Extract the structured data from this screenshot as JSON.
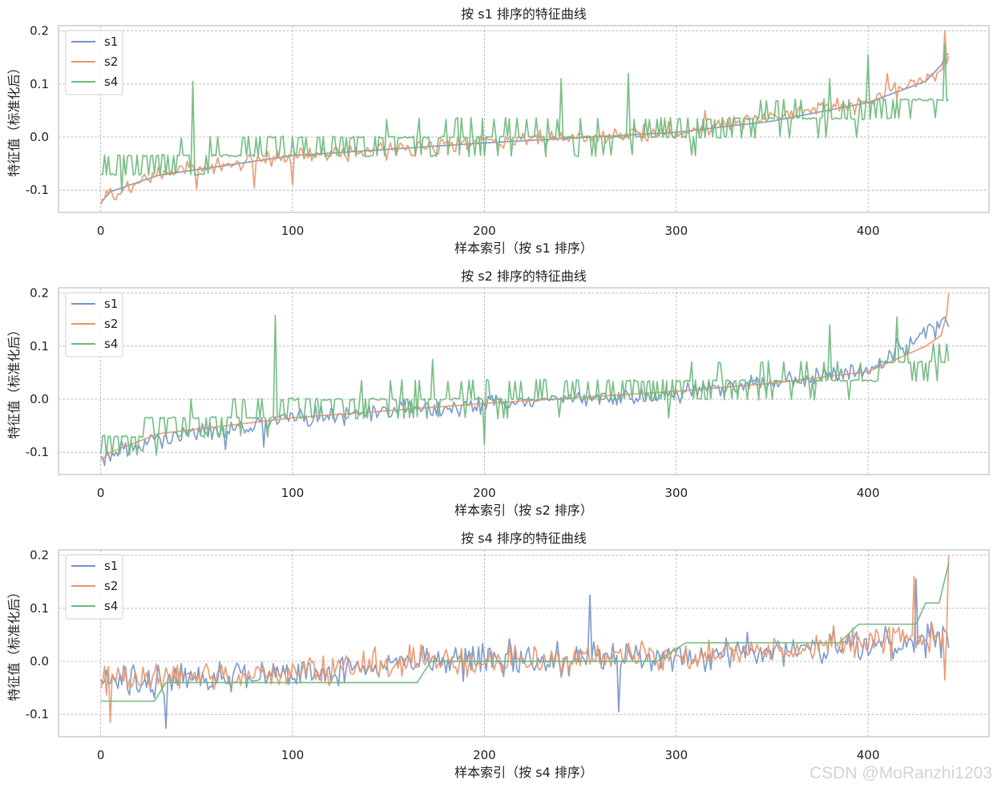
{
  "watermark": "CSDN @MoRanzhi1203",
  "colors": {
    "s1": "#7393c9",
    "s2": "#e8956a",
    "s4": "#6db87c",
    "grid": "#b0b0b0",
    "frame": "#cccccc"
  },
  "chart_data": [
    {
      "type": "line",
      "title": "按 s1 排序的特征曲线",
      "xlabel": "样本索引（按 s1 排序）",
      "ylabel": "特征值（标准化后）",
      "xlim": [
        -22,
        463
      ],
      "ylim": [
        -0.142,
        0.21
      ],
      "xticks": [
        0,
        100,
        200,
        300,
        400
      ],
      "xtick_labels": [
        "0",
        "100",
        "200",
        "300",
        "400"
      ],
      "yticks": [
        -0.1,
        0.0,
        0.1,
        0.2
      ],
      "ytick_labels": [
        "-0.1",
        "0.0",
        "0.1",
        "0.2"
      ],
      "grid": true,
      "legend": "upper-left",
      "sorted_by": "s1",
      "series": [
        {
          "name": "s1",
          "noisy": false,
          "anchors": [
            [
              0,
              -0.124
            ],
            [
              5,
              -0.103
            ],
            [
              30,
              -0.072
            ],
            [
              100,
              -0.035
            ],
            [
              200,
              -0.011
            ],
            [
              300,
              0.009
            ],
            [
              350,
              0.03
            ],
            [
              400,
              0.065
            ],
            [
              430,
              0.105
            ],
            [
              438,
              0.135
            ],
            [
              441,
              0.155
            ],
            [
              442,
              0.157
            ]
          ]
        },
        {
          "name": "s2",
          "noisy": true,
          "amp": 0.022,
          "spikes": [
            [
              50,
              -0.098
            ],
            [
              80,
              -0.096
            ],
            [
              100,
              -0.09
            ],
            [
              315,
              0.05
            ],
            [
              410,
              0.12
            ],
            [
              440,
              0.2
            ]
          ],
          "anchors": [
            [
              0,
              -0.12
            ],
            [
              30,
              -0.07
            ],
            [
              100,
              -0.035
            ],
            [
              200,
              -0.01
            ],
            [
              300,
              0.01
            ],
            [
              400,
              0.065
            ],
            [
              440,
              0.13
            ],
            [
              442,
              0.155
            ]
          ]
        },
        {
          "name": "s4",
          "noisy": true,
          "amp": 0.05,
          "step": 0.035,
          "spikes": [
            [
              48,
              0.105
            ],
            [
              240,
              0.11
            ],
            [
              275,
              0.12
            ],
            [
              380,
              0.11
            ],
            [
              400,
              0.155
            ],
            [
              440,
              0.175
            ]
          ],
          "anchors": [
            [
              0,
              -0.06
            ],
            [
              100,
              -0.02
            ],
            [
              200,
              0.0
            ],
            [
              300,
              0.01
            ],
            [
              400,
              0.05
            ],
            [
              442,
              0.075
            ]
          ]
        }
      ]
    },
    {
      "type": "line",
      "title": "按 s2 排序的特征曲线",
      "xlabel": "样本索引（按 s2 排序）",
      "ylabel": "特征值（标准化后）",
      "xlim": [
        -22,
        463
      ],
      "ylim": [
        -0.142,
        0.21
      ],
      "xticks": [
        0,
        100,
        200,
        300,
        400
      ],
      "xtick_labels": [
        "0",
        "100",
        "200",
        "300",
        "400"
      ],
      "yticks": [
        -0.1,
        0.0,
        0.1,
        0.2
      ],
      "ytick_labels": [
        "-0.1",
        "0.0",
        "0.1",
        "0.2"
      ],
      "grid": true,
      "legend": "upper-left",
      "sorted_by": "s2",
      "series": [
        {
          "name": "s1",
          "noisy": true,
          "amp": 0.025,
          "spikes": [
            [
              2,
              -0.125
            ],
            [
              65,
              -0.095
            ],
            [
              85,
              -0.09
            ],
            [
              415,
              0.115
            ],
            [
              440,
              0.155
            ]
          ],
          "anchors": [
            [
              0,
              -0.11
            ],
            [
              30,
              -0.075
            ],
            [
              100,
              -0.035
            ],
            [
              200,
              -0.01
            ],
            [
              300,
              0.01
            ],
            [
              400,
              0.055
            ],
            [
              442,
              0.15
            ]
          ]
        },
        {
          "name": "s2",
          "noisy": false,
          "anchors": [
            [
              0,
              -0.115
            ],
            [
              5,
              -0.1
            ],
            [
              30,
              -0.065
            ],
            [
              100,
              -0.035
            ],
            [
              200,
              -0.008
            ],
            [
              300,
              0.015
            ],
            [
              350,
              0.03
            ],
            [
              400,
              0.052
            ],
            [
              430,
              0.1
            ],
            [
              438,
              0.12
            ],
            [
              441,
              0.16
            ],
            [
              442,
              0.2
            ]
          ]
        },
        {
          "name": "s4",
          "noisy": true,
          "amp": 0.05,
          "step": 0.035,
          "spikes": [
            [
              91,
              0.158
            ],
            [
              173,
              0.075
            ],
            [
              200,
              -0.085
            ],
            [
              380,
              0.14
            ],
            [
              415,
              0.155
            ]
          ],
          "anchors": [
            [
              0,
              -0.075
            ],
            [
              100,
              -0.02
            ],
            [
              200,
              0.0
            ],
            [
              300,
              0.02
            ],
            [
              400,
              0.05
            ],
            [
              442,
              0.075
            ]
          ]
        }
      ]
    },
    {
      "type": "line",
      "title": "按 s4 排序的特征曲线",
      "xlabel": "样本索引（按 s4 排序）",
      "ylabel": "特征值（标准化后）",
      "xlim": [
        -22,
        463
      ],
      "ylim": [
        -0.142,
        0.21
      ],
      "xticks": [
        0,
        100,
        200,
        300,
        400
      ],
      "xtick_labels": [
        "0",
        "100",
        "200",
        "300",
        "400"
      ],
      "yticks": [
        -0.1,
        0.0,
        0.1,
        0.2
      ],
      "ytick_labels": [
        "-0.1",
        "0.0",
        "0.1",
        "0.2"
      ],
      "grid": true,
      "legend": "upper-left",
      "sorted_by": "s4",
      "series": [
        {
          "name": "s1",
          "noisy": true,
          "amp": 0.045,
          "spikes": [
            [
              34,
              -0.126
            ],
            [
              255,
              0.125
            ],
            [
              270,
              -0.095
            ],
            [
              425,
              0.155
            ]
          ],
          "anchors": [
            [
              0,
              -0.04
            ],
            [
              30,
              -0.035
            ],
            [
              100,
              -0.02
            ],
            [
              170,
              0.0
            ],
            [
              300,
              0.01
            ],
            [
              400,
              0.03
            ],
            [
              442,
              0.05
            ]
          ]
        },
        {
          "name": "s2",
          "noisy": true,
          "amp": 0.042,
          "spikes": [
            [
              5,
              -0.115
            ],
            [
              424,
              0.16
            ],
            [
              440,
              -0.035
            ],
            [
              442,
              0.2
            ]
          ],
          "anchors": [
            [
              0,
              -0.04
            ],
            [
              30,
              -0.035
            ],
            [
              100,
              -0.02
            ],
            [
              170,
              0.0
            ],
            [
              300,
              0.012
            ],
            [
              400,
              0.035
            ],
            [
              442,
              0.05
            ]
          ]
        },
        {
          "name": "s4",
          "noisy": false,
          "steps": [
            [
              0,
              -0.075
            ],
            [
              28,
              -0.075
            ],
            [
              34,
              -0.04
            ],
            [
              165,
              -0.04
            ],
            [
              172,
              0.0
            ],
            [
              290,
              0.0
            ],
            [
              305,
              0.035
            ],
            [
              385,
              0.035
            ],
            [
              395,
              0.07
            ],
            [
              425,
              0.07
            ],
            [
              430,
              0.11
            ],
            [
              437,
              0.11
            ],
            [
              442,
              0.185
            ]
          ]
        }
      ]
    }
  ]
}
